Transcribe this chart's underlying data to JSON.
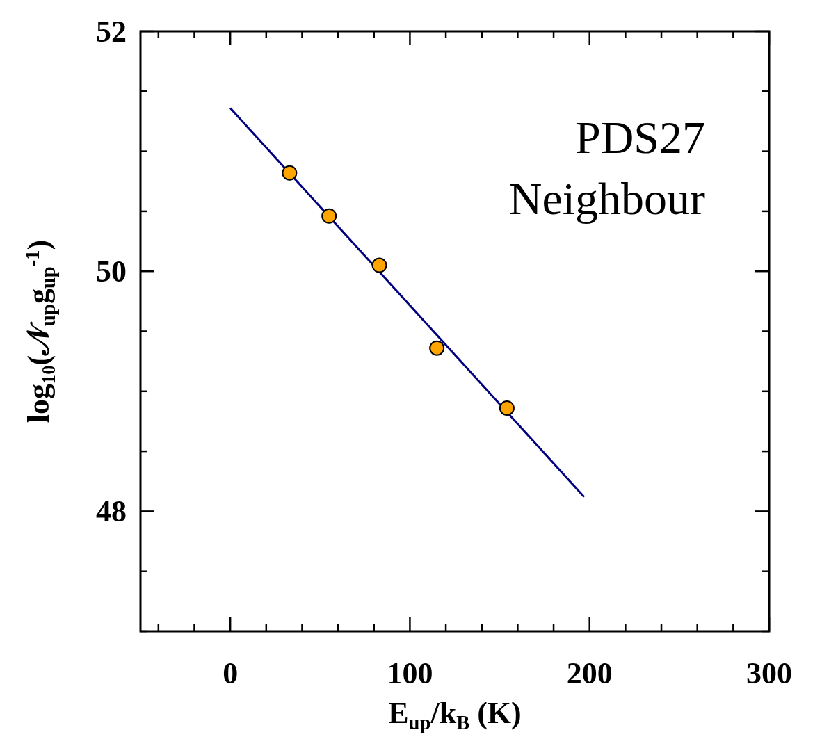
{
  "chart_data": {
    "type": "scatter",
    "xlabel": "E$_{up}$/k$_{B}$ (K)",
    "ylabel": "log₁₀(𝒩$_{up}$g$_{up}$$^{-1}$)",
    "annotations": [
      "PDS27",
      "Neighbour"
    ],
    "xlim": [
      -50,
      300
    ],
    "ylim": [
      47,
      52
    ],
    "xticks": [
      {
        "value": -40,
        "label": null
      },
      {
        "value": -20,
        "label": null
      },
      0,
      {
        "value": 20,
        "label": null
      },
      {
        "value": 40,
        "label": null
      },
      {
        "value": 60,
        "label": null
      },
      {
        "value": 80,
        "label": null
      },
      100,
      {
        "value": 120,
        "label": null
      },
      {
        "value": 140,
        "label": null
      },
      {
        "value": 160,
        "label": null
      },
      {
        "value": 180,
        "label": null
      },
      200,
      {
        "value": 220,
        "label": null
      },
      {
        "value": 240,
        "label": null
      },
      {
        "value": 260,
        "label": null
      },
      {
        "value": 280,
        "label": null
      },
      300
    ],
    "yticks": [
      {
        "value": 47,
        "label": null
      },
      {
        "value": 47.5,
        "label": null
      },
      48,
      {
        "value": 48.5,
        "label": null
      },
      {
        "value": 49,
        "label": null
      },
      {
        "value": 49.5,
        "label": null
      },
      50,
      {
        "value": 50.5,
        "label": null
      },
      {
        "value": 51,
        "label": null
      },
      {
        "value": 51.5,
        "label": null
      },
      52
    ],
    "grid": false,
    "series": [
      {
        "type": "line",
        "color": "#000080",
        "x": [
          0,
          197
        ],
        "values": [
          51.36,
          48.12
        ]
      },
      {
        "marker": "circle",
        "color": "#ffa500",
        "x": [
          33,
          55,
          83,
          115,
          154
        ],
        "values": [
          50.82,
          50.46,
          50.05,
          49.36,
          48.86
        ]
      }
    ]
  }
}
